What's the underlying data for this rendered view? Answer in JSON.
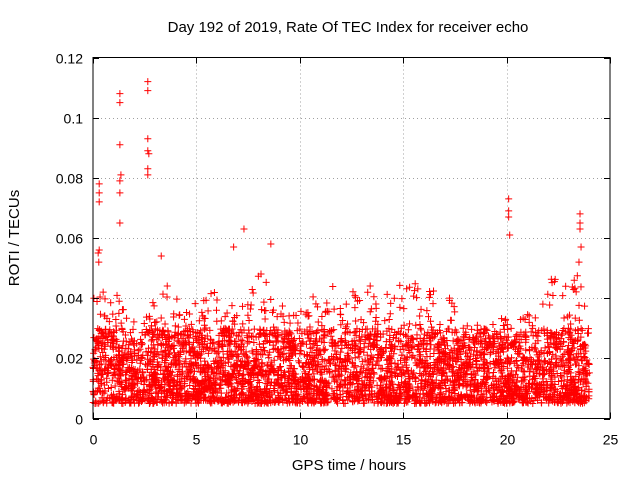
{
  "chart_data": {
    "type": "scatter",
    "title": "Day 192 of 2019, Rate Of TEC Index for receiver echo",
    "xlabel": "GPS time / hours",
    "ylabel": "ROTI / TECUs",
    "xlim": [
      0,
      25
    ],
    "ylim": [
      0,
      0.12
    ],
    "x_ticks": [
      0,
      5,
      10,
      15,
      20,
      25
    ],
    "x_tick_labels": [
      "0",
      "5",
      "10",
      "15",
      "20",
      "25"
    ],
    "y_ticks": [
      0,
      0.02,
      0.04,
      0.06,
      0.08,
      0.1,
      0.12
    ],
    "y_tick_labels": [
      "0",
      "0.02",
      "0.04",
      "0.06",
      "0.08",
      "0.1",
      "0.12"
    ],
    "grid": true,
    "marker": "plus",
    "series_color": "#ff0000",
    "data_time_range_hours": [
      0,
      24
    ],
    "outlier_points": {
      "x": [
        0.3,
        0.3,
        0.3,
        0.3,
        0.25,
        0.28,
        1.3,
        1.3,
        1.3,
        1.35,
        1.3,
        1.3,
        1.3,
        2.65,
        2.65,
        2.65,
        2.65,
        2.65,
        2.65,
        2.7,
        20.1,
        20.1,
        20.1,
        20.15,
        23.55,
        23.55,
        23.55,
        23.6,
        23.5,
        3.3,
        7.3,
        8.6,
        6.8
      ],
      "y": [
        0.078,
        0.072,
        0.075,
        0.056,
        0.055,
        0.052,
        0.108,
        0.105,
        0.091,
        0.081,
        0.079,
        0.075,
        0.065,
        0.112,
        0.109,
        0.093,
        0.089,
        0.083,
        0.081,
        0.088,
        0.073,
        0.069,
        0.067,
        0.061,
        0.068,
        0.065,
        0.063,
        0.057,
        0.052,
        0.054,
        0.063,
        0.058,
        0.057
      ]
    },
    "dense_band": {
      "description": "continuous scatter of ROTI values across 0-24 h",
      "typical_range": [
        0.005,
        0.03
      ],
      "envelope_hours": [
        0,
        1,
        1.5,
        2,
        2.5,
        3,
        3.5,
        4,
        5,
        6,
        6.5,
        7,
        7.5,
        8,
        8.5,
        9,
        10,
        11,
        12,
        12.5,
        13,
        14,
        15,
        16,
        17,
        18,
        19,
        19.5,
        20,
        20.5,
        21,
        22,
        22.5,
        23,
        23.5,
        24
      ],
      "envelope_upper": [
        0.045,
        0.042,
        0.04,
        0.035,
        0.033,
        0.04,
        0.045,
        0.042,
        0.04,
        0.043,
        0.038,
        0.045,
        0.043,
        0.05,
        0.044,
        0.04,
        0.04,
        0.041,
        0.046,
        0.048,
        0.044,
        0.046,
        0.046,
        0.045,
        0.043,
        0.033,
        0.035,
        0.034,
        0.033,
        0.033,
        0.036,
        0.048,
        0.05,
        0.046,
        0.048,
        0.03
      ]
    }
  }
}
